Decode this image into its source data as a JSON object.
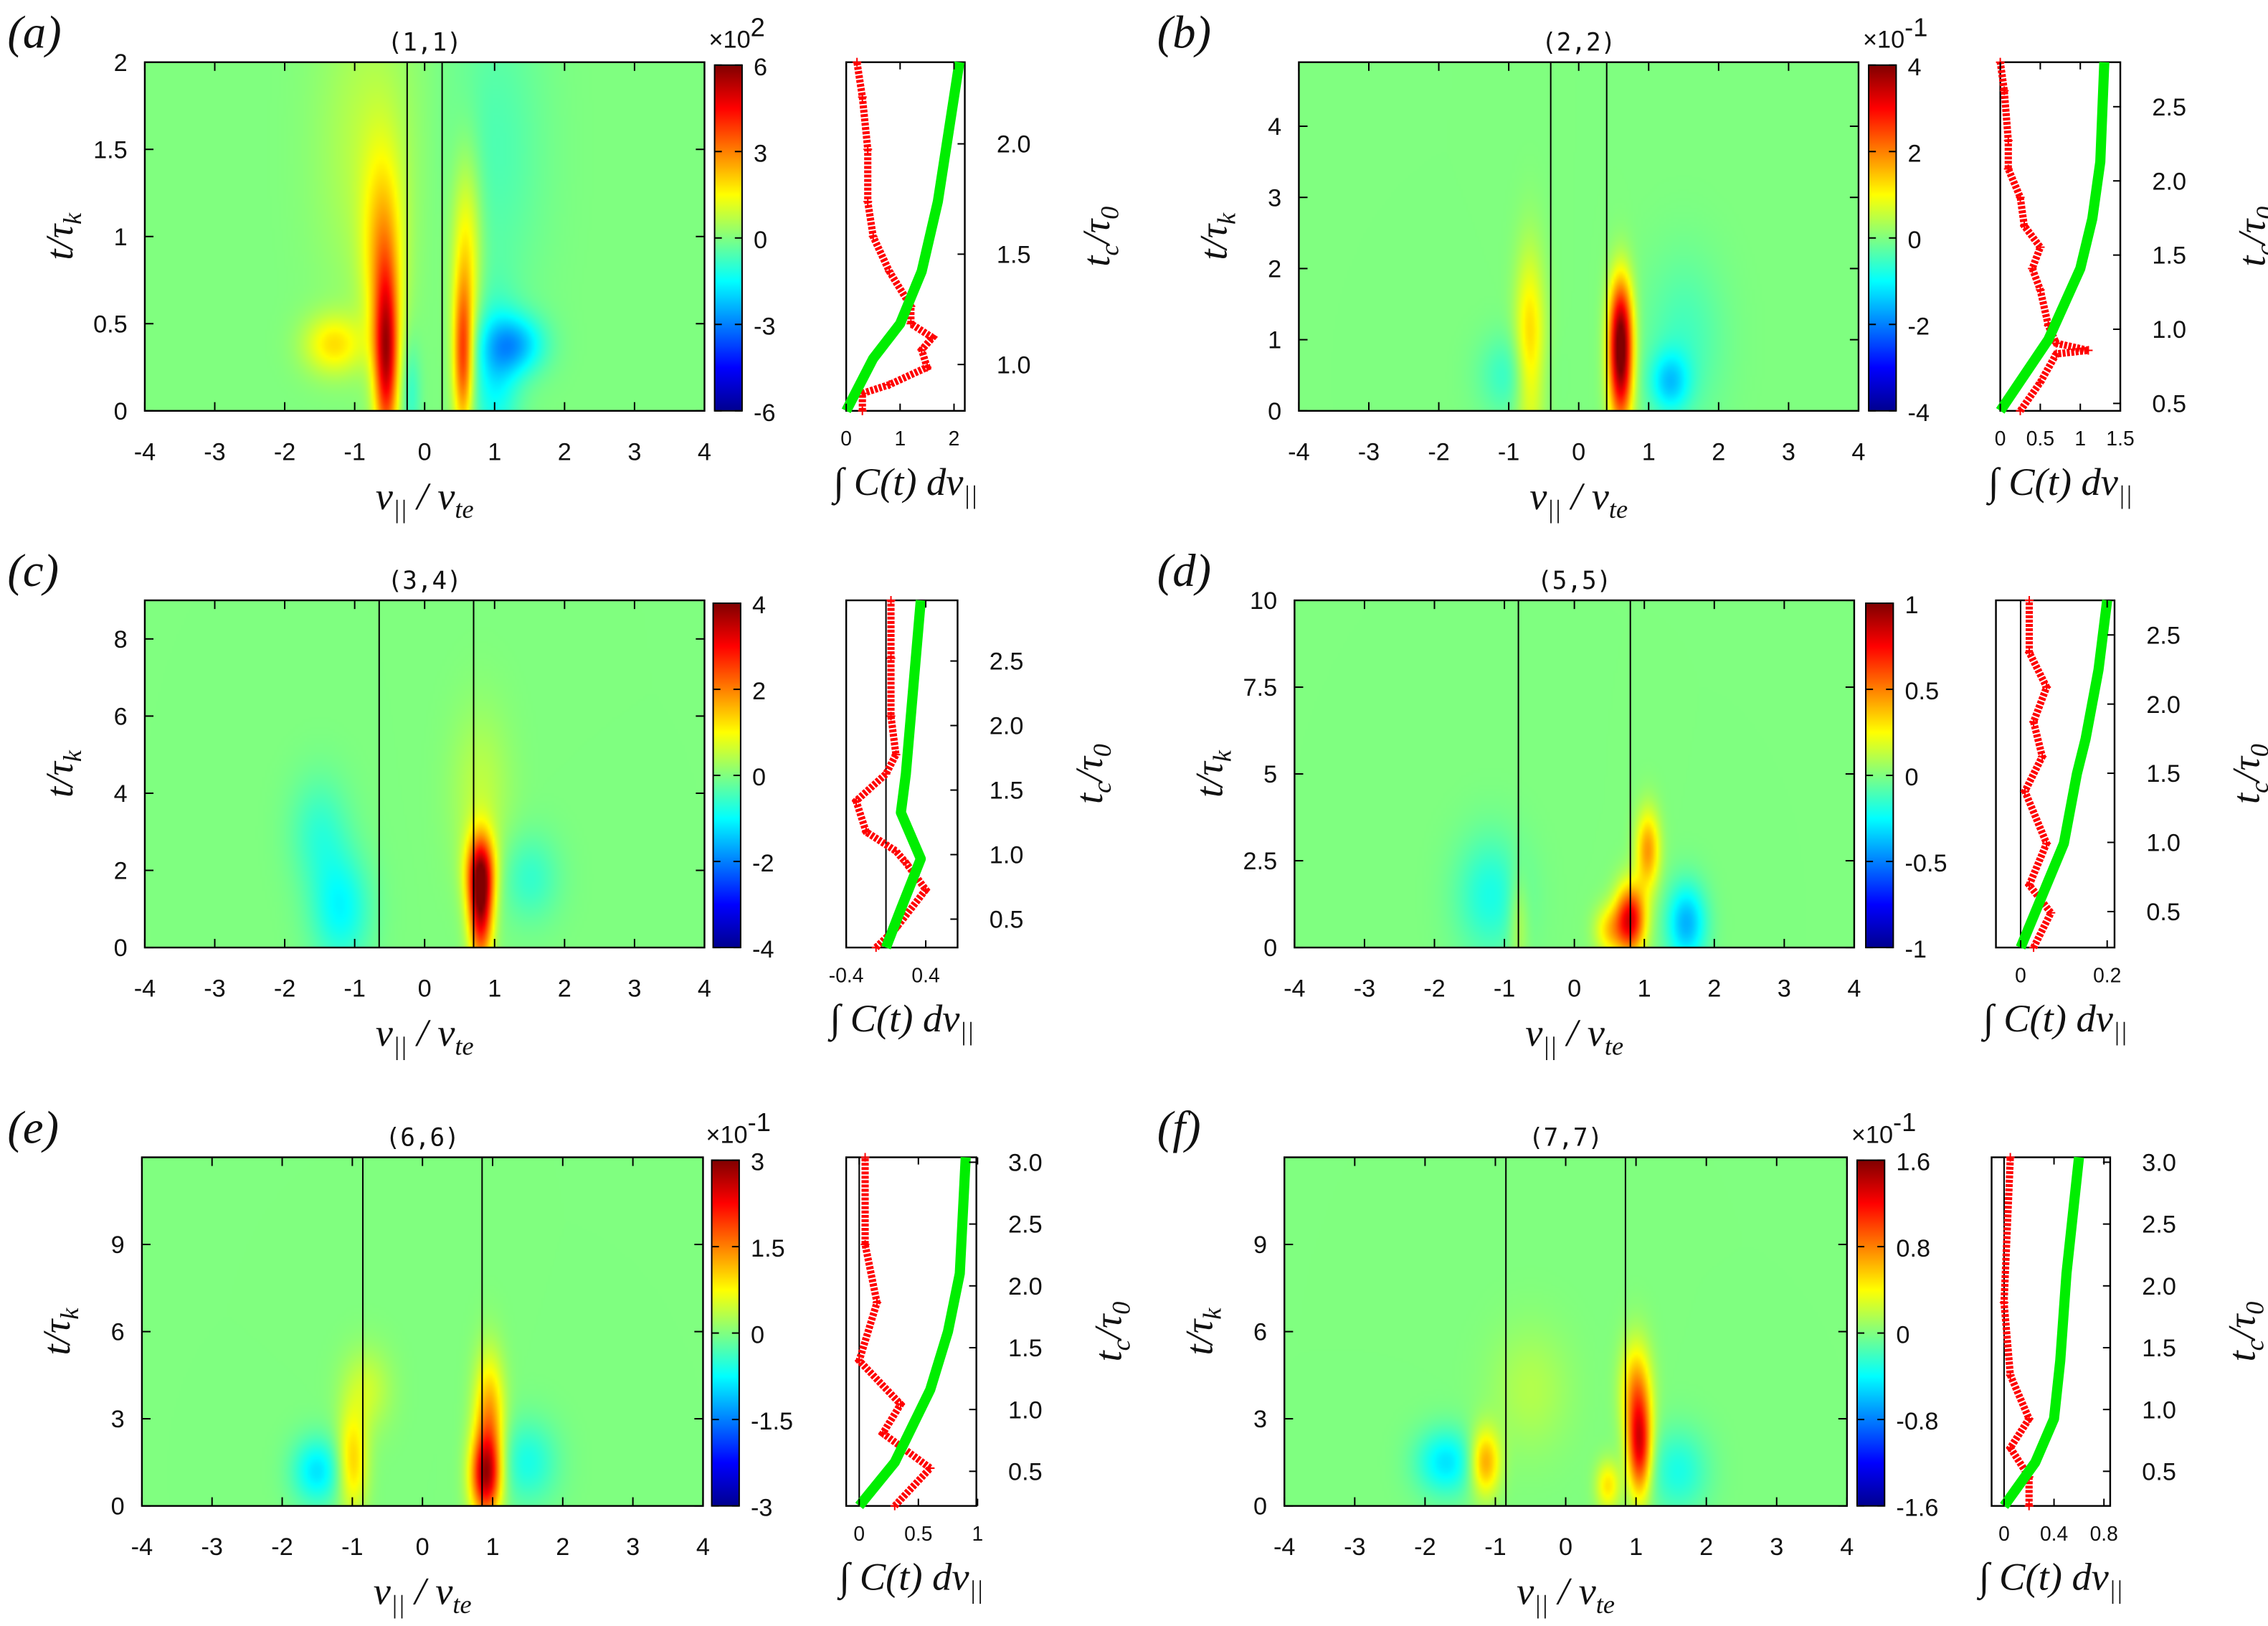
{
  "chart_data": [
    {
      "type": "heatmap",
      "panel_label": "(a)",
      "title": "(1,1)",
      "xlim": [
        -4,
        4
      ],
      "xticks": [
        "-4",
        "-3",
        "-2",
        "-1",
        "0",
        "1",
        "2",
        "3",
        "4"
      ],
      "ylim": [
        0,
        2
      ],
      "yticks": [
        "0",
        "0.5",
        "1",
        "1.5",
        "2"
      ],
      "colorbar": {
        "exponent": "×10",
        "exponent_power": "2",
        "range": [
          -6,
          6
        ],
        "ticks": [
          "6",
          "3",
          "0",
          "-3",
          "-6"
        ]
      },
      "vlines": [
        -0.25,
        0.25
      ],
      "hotspots": [
        [
          -0.55,
          0.3,
          0.12,
          0.35,
          0.8
        ],
        [
          0.55,
          0.3,
          0.1,
          0.3,
          0.6
        ],
        [
          -0.6,
          0.9,
          0.2,
          0.4,
          0.35
        ],
        [
          0.6,
          0.9,
          0.15,
          0.4,
          0.3
        ],
        [
          -1.3,
          0.38,
          0.3,
          0.12,
          0.3
        ],
        [
          1.3,
          0.38,
          0.3,
          0.12,
          -0.35
        ],
        [
          1,
          0.2,
          0.25,
          0.3,
          -0.25
        ],
        [
          -0.8,
          1.5,
          0.5,
          0.6,
          0.12
        ],
        [
          1,
          1.5,
          0.5,
          0.6,
          -0.1
        ],
        [
          -0.2,
          0.1,
          0.1,
          0.2,
          -0.15
        ]
      ],
      "side": {
        "xlim": [
          0,
          2.2
        ],
        "xticks": [
          0,
          1,
          2
        ],
        "right_range": [
          0.79,
          2.37
        ],
        "right_ticks": [
          "1.0",
          "1.5",
          "2.0"
        ],
        "zero_line": false,
        "green": [
          [
            0,
            0
          ],
          [
            0.5,
            0.3
          ],
          [
            1,
            0.5
          ],
          [
            1.4,
            0.8
          ],
          [
            1.7,
            1.2
          ],
          [
            1.9,
            1.6
          ],
          [
            2.1,
            2
          ]
        ],
        "red": [
          [
            0.3,
            0
          ],
          [
            0.3,
            0.1
          ],
          [
            0.8,
            0.15
          ],
          [
            1.5,
            0.25
          ],
          [
            1.4,
            0.35
          ],
          [
            1.6,
            0.42
          ],
          [
            1.2,
            0.5
          ],
          [
            1.2,
            0.6
          ],
          [
            0.8,
            0.8
          ],
          [
            0.5,
            1
          ],
          [
            0.4,
            1.2
          ],
          [
            0.4,
            1.5
          ],
          [
            0.3,
            1.8
          ],
          [
            0.2,
            2
          ]
        ]
      }
    },
    {
      "type": "heatmap",
      "panel_label": "(b)",
      "title": "(2,2)",
      "xlim": [
        -4,
        4
      ],
      "xticks": [
        "-4",
        "-3",
        "-2",
        "-1",
        "0",
        "1",
        "2",
        "3",
        "4"
      ],
      "ylim": [
        0,
        4.9
      ],
      "yticks": [
        "0",
        "1",
        "2",
        "3",
        "4"
      ],
      "colorbar": {
        "exponent": "×10",
        "exponent_power": "-1",
        "range": [
          -4,
          4
        ],
        "ticks": [
          "4",
          "2",
          "0",
          "-2",
          "-4"
        ]
      },
      "vlines": [
        -0.4,
        0.4
      ],
      "hotspots": [
        [
          0.6,
          0.6,
          0.12,
          0.6,
          0.85
        ],
        [
          0.6,
          1.3,
          0.12,
          0.5,
          0.5
        ],
        [
          -0.7,
          0.9,
          0.15,
          0.9,
          0.35
        ],
        [
          1.3,
          0.4,
          0.2,
          0.3,
          -0.3
        ],
        [
          -1,
          0.5,
          0.3,
          0.4,
          -0.15
        ],
        [
          1.5,
          1,
          0.4,
          0.8,
          -0.12
        ]
      ],
      "side": {
        "xlim": [
          0,
          1.5
        ],
        "xticks": [
          0,
          0.5,
          1,
          1.5
        ],
        "right_range": [
          0.45,
          2.8
        ],
        "right_ticks": [
          "0.5",
          "1.0",
          "1.5",
          "2.0",
          "2.5"
        ],
        "zero_line": false,
        "green": [
          [
            0,
            0
          ],
          [
            0.3,
            0.5
          ],
          [
            0.6,
            1
          ],
          [
            0.8,
            1.5
          ],
          [
            1,
            2
          ],
          [
            1.15,
            2.7
          ],
          [
            1.25,
            3.5
          ],
          [
            1.3,
            4.9
          ]
        ],
        "red": [
          [
            0.25,
            0
          ],
          [
            0.5,
            0.4
          ],
          [
            0.7,
            0.8
          ],
          [
            1.1,
            0.85
          ],
          [
            0.7,
            0.95
          ],
          [
            0.6,
            1.2
          ],
          [
            0.5,
            1.7
          ],
          [
            0.4,
            2
          ],
          [
            0.5,
            2.3
          ],
          [
            0.3,
            2.6
          ],
          [
            0.25,
            3
          ],
          [
            0.1,
            3.4
          ],
          [
            0.1,
            3.8
          ],
          [
            0.05,
            4.5
          ],
          [
            0,
            4.9
          ]
        ]
      }
    },
    {
      "type": "heatmap",
      "panel_label": "(c)",
      "title": "(3,4)",
      "xlim": [
        -4,
        4
      ],
      "xticks": [
        "-4",
        "-3",
        "-2",
        "-1",
        "0",
        "1",
        "2",
        "3",
        "4"
      ],
      "ylim": [
        0,
        9
      ],
      "yticks": [
        "0",
        "2",
        "4",
        "6",
        "8"
      ],
      "colorbar": {
        "exponent": "",
        "exponent_power": "",
        "range": [
          -4,
          4
        ],
        "ticks": [
          "4",
          "2",
          "0",
          "-2",
          "-4"
        ]
      },
      "vlines": [
        -0.65,
        0.7
      ],
      "hotspots": [
        [
          0.8,
          1,
          0.12,
          1,
          0.8
        ],
        [
          0.8,
          2,
          0.15,
          0.7,
          0.55
        ],
        [
          -1.2,
          1,
          0.3,
          1,
          -0.25
        ],
        [
          -1.5,
          3,
          0.3,
          1,
          -0.15
        ],
        [
          1.5,
          1.8,
          0.3,
          0.8,
          -0.15
        ],
        [
          0.8,
          4,
          0.3,
          1.5,
          0.12
        ]
      ],
      "side": {
        "xlim": [
          -0.4,
          0.72
        ],
        "xticks": [
          -0.4,
          0.4
        ],
        "right_range": [
          0.28,
          2.97
        ],
        "right_ticks": [
          "0.5",
          "1.0",
          "1.5",
          "2.0",
          "2.5"
        ],
        "zero_line": true,
        "green": [
          [
            0,
            0
          ],
          [
            0.15,
            1
          ],
          [
            0.35,
            2.3
          ],
          [
            0.15,
            3.5
          ],
          [
            0.2,
            4.5
          ],
          [
            0.25,
            6
          ],
          [
            0.3,
            7.5
          ],
          [
            0.35,
            9
          ]
        ],
        "red": [
          [
            -0.1,
            0
          ],
          [
            0.1,
            0.5
          ],
          [
            0.4,
            1.5
          ],
          [
            0.2,
            2.2
          ],
          [
            0.1,
            2.5
          ],
          [
            -0.2,
            3
          ],
          [
            -0.3,
            3.8
          ],
          [
            0,
            4.5
          ],
          [
            0.1,
            5
          ],
          [
            0.05,
            6
          ],
          [
            0.05,
            7.5
          ],
          [
            0.05,
            9
          ]
        ]
      }
    },
    {
      "type": "heatmap",
      "panel_label": "(d)",
      "title": "(5,5)",
      "xlim": [
        -4,
        4
      ],
      "xticks": [
        "-4",
        "-3",
        "-2",
        "-1",
        "0",
        "1",
        "2",
        "3",
        "4"
      ],
      "ylim": [
        0,
        10
      ],
      "yticks": [
        "0",
        "2.5",
        "5",
        "7.5",
        "10"
      ],
      "colorbar": {
        "exponent": "",
        "exponent_power": "",
        "range": [
          -1,
          1
        ],
        "ticks": [
          "1",
          "0.5",
          "0",
          "-0.5",
          "-1"
        ]
      },
      "vlines": [
        -0.8,
        0.8
      ],
      "hotspots": [
        [
          0.8,
          0.8,
          0.15,
          0.7,
          0.8
        ],
        [
          1.05,
          2.8,
          0.12,
          0.8,
          0.45
        ],
        [
          1.6,
          0.7,
          0.2,
          0.8,
          -0.4
        ],
        [
          -1.2,
          1.5,
          0.35,
          1.2,
          -0.2
        ],
        [
          -0.8,
          0.8,
          0.1,
          1,
          0.15
        ],
        [
          0.5,
          0.5,
          0.15,
          0.5,
          0.3
        ]
      ],
      "side": {
        "xlim": [
          -0.057,
          0.217
        ],
        "xticks": [
          0,
          0.2
        ],
        "right_range": [
          0.24,
          2.75
        ],
        "right_ticks": [
          "0.5",
          "1.0",
          "1.5",
          "2.0",
          "2.5"
        ],
        "zero_line": true,
        "green": [
          [
            0,
            0
          ],
          [
            0.05,
            1.5
          ],
          [
            0.1,
            3
          ],
          [
            0.13,
            5
          ],
          [
            0.15,
            6
          ],
          [
            0.18,
            8
          ],
          [
            0.2,
            10
          ]
        ],
        "red": [
          [
            0.03,
            0
          ],
          [
            0.07,
            1
          ],
          [
            0.02,
            1.8
          ],
          [
            0.06,
            3
          ],
          [
            0.01,
            4.5
          ],
          [
            0.05,
            5.5
          ],
          [
            0.03,
            6.5
          ],
          [
            0.06,
            7.5
          ],
          [
            0.02,
            8.5
          ],
          [
            0.02,
            10
          ]
        ]
      }
    },
    {
      "type": "heatmap",
      "panel_label": "(e)",
      "title": "(6,6)",
      "xlim": [
        -4,
        4
      ],
      "xticks": [
        "-4",
        "-3",
        "-2",
        "-1",
        "0",
        "1",
        "2",
        "3",
        "4"
      ],
      "ylim": [
        0,
        12
      ],
      "yticks": [
        "0",
        "3",
        "6",
        "9"
      ],
      "colorbar": {
        "exponent": "×10",
        "exponent_power": "-1",
        "range": [
          -3,
          3
        ],
        "ticks": [
          "3",
          "1.5",
          "0",
          "-1.5",
          "-3"
        ]
      },
      "vlines": [
        -0.85,
        0.85
      ],
      "hotspots": [
        [
          0.9,
          1,
          0.15,
          1,
          0.8
        ],
        [
          0.95,
          3,
          0.15,
          1.5,
          0.45
        ],
        [
          -1,
          1.5,
          0.15,
          1.2,
          0.35
        ],
        [
          -1.5,
          1.2,
          0.25,
          0.8,
          -0.3
        ],
        [
          1.5,
          1.5,
          0.3,
          1,
          -0.2
        ],
        [
          -0.8,
          4,
          0.25,
          1,
          0.15
        ]
      ],
      "side": {
        "xlim": [
          -0.11,
          0.99
        ],
        "xticks": [
          0,
          0.5,
          1
        ],
        "right_range": [
          0.22,
          3.04
        ],
        "right_ticks": [
          "0.5",
          "1.0",
          "1.5",
          "2.0",
          "2.5",
          "3.0"
        ],
        "zero_line": true,
        "green": [
          [
            0,
            0
          ],
          [
            0.3,
            1.5
          ],
          [
            0.6,
            4
          ],
          [
            0.75,
            6
          ],
          [
            0.85,
            8
          ],
          [
            0.9,
            12
          ]
        ],
        "red": [
          [
            0.3,
            0
          ],
          [
            0.6,
            1.3
          ],
          [
            0.2,
            2.5
          ],
          [
            0.35,
            3.5
          ],
          [
            0,
            5
          ],
          [
            0.15,
            7
          ],
          [
            0.05,
            9
          ],
          [
            0.05,
            12
          ]
        ]
      }
    },
    {
      "type": "heatmap",
      "panel_label": "(f)",
      "title": "(7,7)",
      "xlim": [
        -4,
        4
      ],
      "xticks": [
        "-4",
        "-3",
        "-2",
        "-1",
        "0",
        "1",
        "2",
        "3",
        "4"
      ],
      "ylim": [
        0,
        12
      ],
      "yticks": [
        "0",
        "3",
        "6",
        "9"
      ],
      "colorbar": {
        "exponent": "×10",
        "exponent_power": "-1",
        "range": [
          -1.6,
          1.6
        ],
        "ticks": [
          "1.6",
          "0.8",
          "0",
          "-0.8",
          "-1.6"
        ]
      },
      "vlines": [
        -0.85,
        0.85
      ],
      "hotspots": [
        [
          1.05,
          2,
          0.12,
          1.2,
          0.75
        ],
        [
          1,
          4,
          0.15,
          1.2,
          0.4
        ],
        [
          -1.15,
          1.5,
          0.15,
          0.8,
          0.45
        ],
        [
          -1.7,
          1.5,
          0.3,
          0.8,
          -0.3
        ],
        [
          0.6,
          0.7,
          0.12,
          0.6,
          0.3
        ],
        [
          1.6,
          1.2,
          0.3,
          1,
          -0.2
        ],
        [
          -0.5,
          4,
          0.4,
          1.5,
          0.1
        ]
      ],
      "side": {
        "xlim": [
          -0.1,
          0.85
        ],
        "xticks": [
          0,
          0.4,
          0.8
        ],
        "right_range": [
          0.22,
          3.04
        ],
        "right_ticks": [
          "0.5",
          "1.0",
          "1.5",
          "2.0",
          "2.5",
          "3.0"
        ],
        "zero_line": true,
        "green": [
          [
            0,
            0
          ],
          [
            0.25,
            1.5
          ],
          [
            0.4,
            3
          ],
          [
            0.45,
            5
          ],
          [
            0.5,
            8
          ],
          [
            0.6,
            12
          ]
        ],
        "red": [
          [
            0.2,
            0
          ],
          [
            0.2,
            1
          ],
          [
            0.05,
            2
          ],
          [
            0.2,
            3
          ],
          [
            0.05,
            4.5
          ],
          [
            0,
            7
          ],
          [
            0.05,
            12
          ]
        ]
      }
    }
  ],
  "labels": {
    "ylabel_base": "t/τ",
    "ylabel_sub": "k",
    "xlabel_a": "v",
    "xlabel_a_sub": "||",
    "xlabel_mid": " / v",
    "xlabel_b_sub": "te",
    "side_xlabel": "∫ C(t) dv",
    "side_xlabel_sub": "||",
    "right_a": "t",
    "right_a_sub": "c",
    "right_mid": "/τ",
    "right_sub": "0"
  },
  "colors": {
    "red_series": "#ff0000",
    "green_series": "#00ee00",
    "colormap": "jet"
  }
}
